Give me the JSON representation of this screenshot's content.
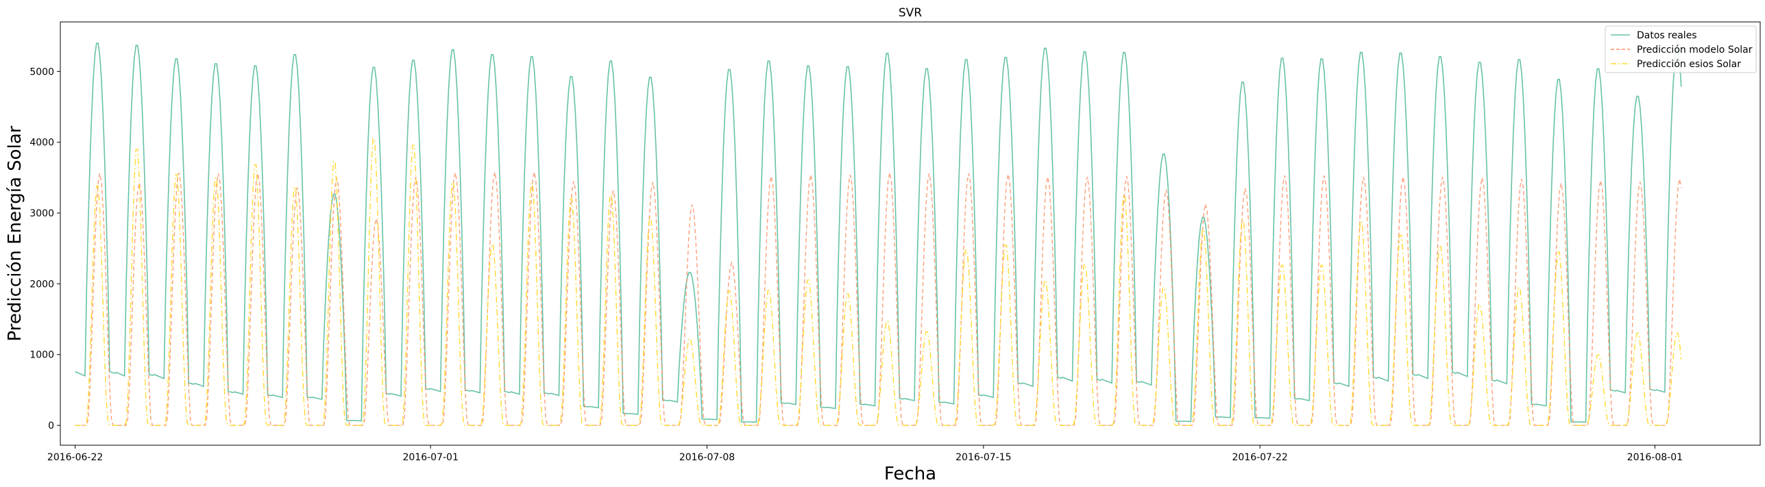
{
  "chart_data": {
    "type": "line",
    "title": "SVR",
    "xlabel": "Fecha",
    "ylabel": "Predicción Energía Solar",
    "x_start": "2016-06-22",
    "xlim": [
      "2016-06-21 15:00",
      "2016-08-03 16:00"
    ],
    "ylim": [
      -280,
      5700
    ],
    "x_ticks": [
      "2016-06-22",
      "2016-07-01",
      "2016-07-08",
      "2016-07-15",
      "2016-07-22",
      "2016-08-01"
    ],
    "y_ticks": [
      0,
      1000,
      2000,
      3000,
      4000,
      5000
    ],
    "legend_position": "top-right",
    "colors": {
      "real": "#66c2a5",
      "model": "#fc8d62",
      "esios": "#ffd92f"
    },
    "series": [
      {
        "name": "Datos reales",
        "key": "real",
        "style": "solid",
        "day_peaks": [
          5420,
          5390,
          5200,
          5130,
          5100,
          5260,
          3280,
          5080,
          5180,
          5330,
          5260,
          5230,
          4950,
          5170,
          4940,
          2170,
          5050,
          5170,
          5100,
          5090,
          5280,
          5060,
          5190,
          5220,
          5350,
          5300,
          5290,
          3850,
          2950,
          4870,
          5210,
          5200,
          5290,
          5280,
          5230,
          5150,
          5190,
          4910,
          5060,
          4670,
          5340
        ],
        "night_levels": [
          760,
          720,
          600,
          480,
          430,
          400,
          70,
          450,
          520,
          500,
          480,
          460,
          270,
          170,
          360,
          90,
          50,
          320,
          260,
          300,
          380,
          330,
          430,
          600,
          680,
          650,
          620,
          60,
          120,
          110,
          380,
          600,
          680,
          720,
          750,
          640,
          300,
          50,
          500,
          510,
          520
        ]
      },
      {
        "name": "Predicción modelo Solar",
        "key": "model",
        "style": "dashed",
        "day_peaks": [
          3560,
          3430,
          3570,
          3560,
          3560,
          3360,
          3500,
          2920,
          3510,
          3570,
          3580,
          3580,
          3450,
          3320,
          3440,
          3120,
          2300,
          3520,
          3540,
          3540,
          3570,
          3560,
          3560,
          3550,
          3510,
          3510,
          3520,
          3330,
          3130,
          3350,
          3530,
          3530,
          3510,
          3510,
          3510,
          3500,
          3480,
          3420,
          3460,
          3440,
          3480
        ]
      },
      {
        "name": "Predicción esios Solar",
        "key": "esios",
        "style": "dashdot",
        "day_peaks": [
          3430,
          3950,
          3590,
          3540,
          3730,
          3410,
          3780,
          4100,
          4010,
          3480,
          2590,
          3460,
          3240,
          3300,
          2980,
          1240,
          1920,
          1930,
          2080,
          1880,
          1490,
          1340,
          2510,
          2580,
          2070,
          2300,
          3290,
          1970,
          2800,
          2940,
          2290,
          2290,
          2920,
          2720,
          2560,
          1730,
          1970,
          2480,
          1010,
          1320,
          1320
        ]
      }
    ]
  }
}
